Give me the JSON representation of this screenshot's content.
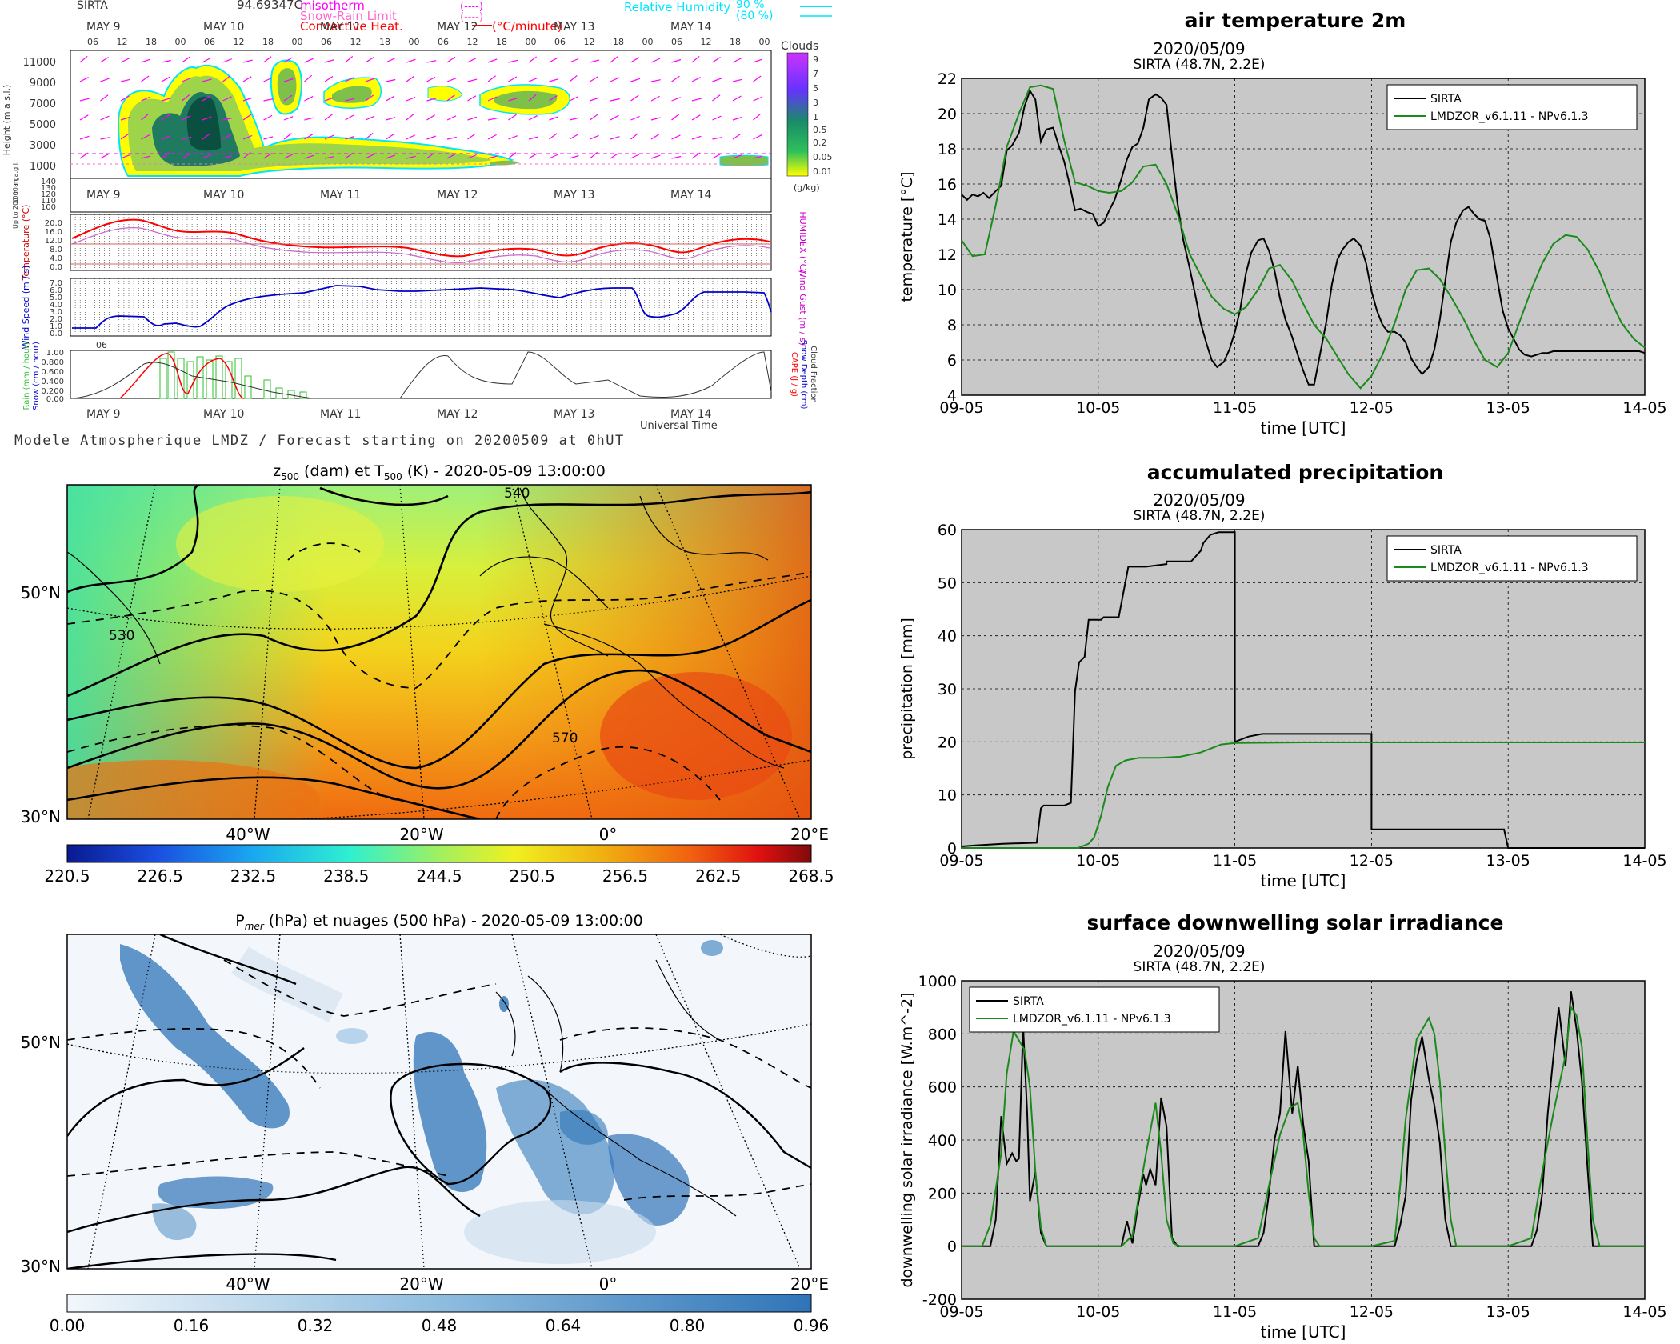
{
  "meteogram": {
    "station": "SIRTA",
    "value_header": "94.69347C",
    "legend_left": [
      {
        "label": "misotherm",
        "unit": "(----)",
        "color": "#ff00ff"
      },
      {
        "label": "Snow-Rain Limit",
        "unit": "(----)",
        "color": "#ff66cc"
      },
      {
        "label": "Convective Heat.",
        "unit": "(°C/minute)",
        "color": "#ff0000"
      }
    ],
    "legend_right": [
      {
        "label": "Relative Humidity",
        "value": "90 %",
        "color": "#00e5ff"
      },
      {
        "label": "",
        "value": "(80 %)",
        "color": "#00e5ff"
      }
    ],
    "day_labels": [
      "MAY  9",
      "MAY 10",
      "MAY 11",
      "MAY 12",
      "MAY 13",
      "MAY 14"
    ],
    "hour_labels": [
      "06",
      "12",
      "18",
      "00"
    ],
    "height_axis": {
      "label": "Height (m a.s.l.)",
      "ticks": [
        "11000",
        "9000",
        "7000",
        "5000",
        "3000",
        "1000"
      ],
      "sub_label": "1000 m a.g.l."
    },
    "low_axis": {
      "label": "Up to 200 m a.g.l.",
      "ticks": [
        "140",
        "130",
        "120",
        "110",
        "100"
      ]
    },
    "clouds_scale": {
      "title": "Clouds",
      "unit": "(g/kg)",
      "ticks": [
        "9",
        "7",
        "5",
        "3",
        "1",
        "0.5",
        "0.2",
        "0.05",
        "0.01"
      ]
    },
    "temp_panel": {
      "label": "Temperature (°C)",
      "right_label": "HUMIDEX (°C)",
      "ticks": [
        "20.0",
        "16.0",
        "12.0",
        "8.0",
        "4.0",
        "0.0"
      ]
    },
    "wind_panel": {
      "label": "Wind Speed (m / s)",
      "right_label": "Wind Gust (m / s)",
      "ticks": [
        "7.0",
        "6.0",
        "5.0",
        "4.0",
        "3.0",
        "2.0",
        "1.0",
        "0.0"
      ]
    },
    "rain_panel": {
      "label": "Rain (mm / hour)",
      "label2": "Snow (cm / hour)",
      "right_label": "CAPE (J / g)",
      "right_label2": "Snow Depth (cm)",
      "right_label3": "Cloud Fraction",
      "ticks": [
        "1.00",
        "0.800",
        "0.600",
        "0.400",
        "0.200",
        "0.00"
      ]
    },
    "x_title": "Universal Time",
    "footer": "Modele Atmospherique LMDZ / Forecast starting on 20200509 at 0hUT"
  },
  "map1": {
    "title_pre": "z",
    "title_sub1": "500",
    "title_mid": " (dam) et T",
    "title_sub2": "500",
    "title_post": " (K) - 2020-05-09 13:00:00",
    "lat_labels": [
      "50°N",
      "30°N"
    ],
    "lon_labels": [
      "40°W",
      "20°W",
      "0°",
      "20°E"
    ],
    "contour_labels": [
      "540",
      "530",
      "570"
    ],
    "colorbar_ticks": [
      "220.5",
      "226.5",
      "232.5",
      "238.5",
      "244.5",
      "250.5",
      "256.5",
      "262.5",
      "268.5"
    ]
  },
  "map2": {
    "title_pre": "P",
    "title_sub": "mer",
    "title_post": " (hPa) et nuages (500 hPa) - 2020-05-09 13:00:00",
    "lat_labels": [
      "50°N",
      "30°N"
    ],
    "lon_labels": [
      "40°W",
      "20°W",
      "0°",
      "20°E"
    ],
    "colorbar_ticks": [
      "0.00",
      "0.16",
      "0.32",
      "0.48",
      "0.64",
      "0.80",
      "0.96"
    ]
  },
  "colors": {
    "sirta": "#000000",
    "model": "#1a8a1a",
    "plot_bg": "#c8c8c8",
    "temp_line": "#ff0000",
    "wind_line": "#0000cc"
  },
  "chart_data": [
    {
      "type": "line",
      "title": "air temperature 2m",
      "date_line": "2020/05/09",
      "station_line": "SIRTA (48.7N, 2.2E)",
      "xlabel": "time [UTC]",
      "ylabel": "temperature [°C]",
      "x_ticks": [
        "09-05",
        "10-05",
        "11-05",
        "12-05",
        "13-05",
        "14-05"
      ],
      "y_ticks": [
        "4",
        "6",
        "8",
        "10",
        "12",
        "14",
        "16",
        "18",
        "20",
        "22"
      ],
      "xlim": [
        0,
        5
      ],
      "ylim": [
        4,
        22
      ],
      "grid": true,
      "legend_position": "top-right",
      "series": [
        {
          "name": "SIRTA",
          "x": [
            0,
            0.04,
            0.08,
            0.12,
            0.16,
            0.2,
            0.25,
            0.29,
            0.33,
            0.37,
            0.42,
            0.46,
            0.5,
            0.54,
            0.58,
            0.62,
            0.67,
            0.71,
            0.75,
            0.79,
            0.83,
            0.87,
            0.92,
            0.96,
            1,
            1.04,
            1.08,
            1.12,
            1.17,
            1.21,
            1.25,
            1.29,
            1.33,
            1.37,
            1.42,
            1.46,
            1.5,
            1.54,
            1.58,
            1.62,
            1.67,
            1.71,
            1.75,
            1.79,
            1.83,
            1.87,
            1.92,
            1.96,
            2,
            2.04,
            2.08,
            2.12,
            2.17,
            2.21,
            2.25,
            2.29,
            2.33,
            2.37,
            2.42,
            2.46,
            2.5,
            2.54,
            2.58,
            2.62,
            2.67,
            2.71,
            2.75,
            2.79,
            2.83,
            2.87,
            2.92,
            2.96,
            3,
            3.04,
            3.08,
            3.12,
            3.17,
            3.21,
            3.25,
            3.29,
            3.33,
            3.37,
            3.42,
            3.46,
            3.5,
            3.54,
            3.58,
            3.62,
            3.67,
            3.71,
            3.75,
            3.79,
            3.83,
            3.87,
            3.92,
            3.96,
            4,
            4.04,
            4.08,
            4.12,
            4.17,
            4.21,
            4.25,
            4.29,
            4.33,
            4.37,
            4.42,
            4.46,
            4.5,
            4.54,
            4.58,
            4.62,
            4.67,
            4.71,
            4.75,
            4.79,
            4.83,
            4.87,
            4.92,
            4.96,
            5
          ],
          "y": [
            15.4,
            15.1,
            15.4,
            15.3,
            15.5,
            15.2,
            15.6,
            15.9,
            17.9,
            18.2,
            18.9,
            20.4,
            21.3,
            20.8,
            18.4,
            19.1,
            19.2,
            18.2,
            17.3,
            16.0,
            14.5,
            14.6,
            14.4,
            14.3,
            13.6,
            13.8,
            14.5,
            15.1,
            16.3,
            17.4,
            18.1,
            18.3,
            19.2,
            20.8,
            21.1,
            20.9,
            20.5,
            17.6,
            14.9,
            12.9,
            11.2,
            9.7,
            8.1,
            7.0,
            6.0,
            5.6,
            5.9,
            6.6,
            7.6,
            8.9,
            10.9,
            12.1,
            12.8,
            12.9,
            12.2,
            11.1,
            9.5,
            8.3,
            7.3,
            6.3,
            5.4,
            4.6,
            4.6,
            6.2,
            8.2,
            10.3,
            11.7,
            12.3,
            12.7,
            12.9,
            12.5,
            11.5,
            9.9,
            8.8,
            8.0,
            7.6,
            7.6,
            7.4,
            7.0,
            6.1,
            5.6,
            5.2,
            5.6,
            6.6,
            8.3,
            10.5,
            12.7,
            13.8,
            14.5,
            14.7,
            14.3,
            14.0,
            13.9,
            12.9,
            10.6,
            8.8,
            7.8,
            7.2,
            6.6,
            6.3,
            6.2,
            6.3,
            6.4,
            6.4,
            6.5,
            6.5,
            6.5,
            6.5,
            6.5,
            6.5,
            6.5,
            6.5,
            6.5,
            6.5,
            6.5,
            6.5,
            6.5,
            6.5,
            6.5,
            6.5,
            6.4
          ]
        },
        {
          "name": "LMDZOR_v6.1.11 - NPv6.1.3",
          "x": [
            0,
            0.08,
            0.17,
            0.25,
            0.33,
            0.42,
            0.5,
            0.58,
            0.67,
            0.75,
            0.83,
            0.92,
            1,
            1.08,
            1.17,
            1.25,
            1.33,
            1.42,
            1.5,
            1.58,
            1.67,
            1.75,
            1.83,
            1.92,
            2,
            2.08,
            2.17,
            2.25,
            2.33,
            2.42,
            2.5,
            2.58,
            2.67,
            2.75,
            2.83,
            2.92,
            3,
            3.08,
            3.17,
            3.25,
            3.33,
            3.42,
            3.5,
            3.58,
            3.67,
            3.75,
            3.83,
            3.92,
            4,
            4.08,
            4.17,
            4.25,
            4.33,
            4.42,
            4.5,
            4.58,
            4.67,
            4.75,
            4.83,
            4.92,
            5
          ],
          "y": [
            12.8,
            11.9,
            12.0,
            14.8,
            18.1,
            20.0,
            21.5,
            21.6,
            21.4,
            18.5,
            16.1,
            15.9,
            15.6,
            15.5,
            15.6,
            16.1,
            17.0,
            17.1,
            16.0,
            14.3,
            12.0,
            10.8,
            9.6,
            8.9,
            8.6,
            9.0,
            10.0,
            11.2,
            11.4,
            10.5,
            9.2,
            8.0,
            7.2,
            6.2,
            5.2,
            4.4,
            5.1,
            6.3,
            8.1,
            10.0,
            11.1,
            11.2,
            10.6,
            9.6,
            8.4,
            7.1,
            6.0,
            5.6,
            6.4,
            8.1,
            10.0,
            11.5,
            12.6,
            13.1,
            13.0,
            12.3,
            11.0,
            9.4,
            8.1,
            7.2,
            6.7
          ]
        }
      ]
    },
    {
      "type": "line",
      "title": "accumulated precipitation",
      "date_line": "2020/05/09",
      "station_line": "SIRTA (48.7N, 2.2E)",
      "xlabel": "time [UTC]",
      "ylabel": "precipitation [mm]",
      "x_ticks": [
        "09-05",
        "10-05",
        "11-05",
        "12-05",
        "13-05",
        "14-05"
      ],
      "y_ticks": [
        "0",
        "10",
        "20",
        "30",
        "40",
        "50",
        "60"
      ],
      "xlim": [
        0,
        5
      ],
      "ylim": [
        0,
        60
      ],
      "grid": true,
      "legend_position": "top-right",
      "series": [
        {
          "name": "SIRTA",
          "x": [
            0,
            0.1,
            0.3,
            0.55,
            0.58,
            0.6,
            0.75,
            0.8,
            0.83,
            0.86,
            0.9,
            0.93,
            0.96,
            1.02,
            1.04,
            1.08,
            1.15,
            1.22,
            1.23,
            1.35,
            1.5,
            1.5,
            1.68,
            1.75,
            1.77,
            1.82,
            1.88,
            2.0,
            2.0,
            2.1,
            2.2,
            2.35,
            2.55,
            3.0,
            3.0,
            3.1,
            3.97,
            3.97,
            4.0,
            5
          ],
          "y": [
            0.3,
            0.5,
            0.8,
            1.0,
            7.5,
            8.0,
            8.0,
            8.5,
            29.5,
            35.0,
            36.0,
            43.0,
            43.0,
            43.0,
            43.5,
            43.5,
            43.5,
            53.0,
            53.0,
            53.0,
            53.5,
            54.0,
            54.0,
            56.0,
            57.5,
            59.0,
            59.5,
            59.5,
            20.0,
            21.0,
            21.5,
            21.5,
            21.5,
            21.5,
            3.5,
            3.5,
            3.5,
            3.5,
            0.0,
            0.0
          ]
        },
        {
          "name": "LMDZOR_v6.1.11 - NPv6.1.3",
          "x": [
            0,
            0.75,
            0.85,
            0.93,
            0.97,
            1.02,
            1.07,
            1.13,
            1.2,
            1.3,
            1.45,
            1.6,
            1.75,
            1.9,
            2.0,
            2.5,
            3.0,
            4.0,
            5
          ],
          "y": [
            0,
            0,
            0,
            0.8,
            2.0,
            6.0,
            11.5,
            15.5,
            16.5,
            17.0,
            17.0,
            17.2,
            18.0,
            19.5,
            19.8,
            19.9,
            19.9,
            19.9,
            19.9
          ]
        }
      ]
    },
    {
      "type": "line",
      "title": "surface downwelling solar irradiance",
      "date_line": "2020/05/09",
      "station_line": "SIRTA (48.7N, 2.2E)",
      "xlabel": "time [UTC]",
      "ylabel": "downwelling solar irradiance [W.m^-2]",
      "x_ticks": [
        "09-05",
        "10-05",
        "11-05",
        "12-05",
        "13-05",
        "14-05"
      ],
      "y_ticks": [
        "-200",
        "0",
        "200",
        "400",
        "600",
        "800",
        "1000"
      ],
      "xlim": [
        0,
        5
      ],
      "ylim": [
        -200,
        1000
      ],
      "grid": true,
      "legend_position": "top-left",
      "series": [
        {
          "name": "SIRTA",
          "x": [
            0,
            0.15,
            0.21,
            0.25,
            0.29,
            0.33,
            0.37,
            0.4,
            0.42,
            0.45,
            0.48,
            0.5,
            0.54,
            0.58,
            0.62,
            0.67,
            0.71,
            0.75,
            0.8,
            1.0,
            1.17,
            1.21,
            1.25,
            1.29,
            1.33,
            1.35,
            1.38,
            1.42,
            1.46,
            1.5,
            1.54,
            1.58,
            1.62,
            1.67,
            1.71,
            1.75,
            1.8,
            2.0,
            2.17,
            2.21,
            2.25,
            2.29,
            2.33,
            2.37,
            2.42,
            2.46,
            2.5,
            2.54,
            2.58,
            2.62,
            2.67,
            2.71,
            2.75,
            2.8,
            3.0,
            3.17,
            3.21,
            3.25,
            3.29,
            3.33,
            3.37,
            3.42,
            3.46,
            3.5,
            3.54,
            3.58,
            3.62,
            3.67,
            3.71,
            3.75,
            3.8,
            4.0,
            4.17,
            4.21,
            4.25,
            4.29,
            4.33,
            4.37,
            4.42,
            4.46,
            4.5,
            4.54,
            4.58,
            4.62,
            4.67,
            4.71,
            4.75,
            4.8,
            5
          ],
          "y": [
            0,
            0,
            0,
            100,
            490,
            310,
            350,
            320,
            330,
            830,
            500,
            170,
            280,
            50,
            0,
            0,
            0,
            0,
            0,
            0,
            0,
            95,
            10,
            150,
            270,
            230,
            290,
            230,
            560,
            450,
            30,
            0,
            0,
            0,
            0,
            0,
            0,
            0,
            0,
            50,
            200,
            400,
            500,
            810,
            500,
            680,
            460,
            320,
            0,
            0,
            0,
            0,
            0,
            0,
            0,
            0,
            80,
            190,
            550,
            700,
            790,
            630,
            530,
            390,
            100,
            0,
            0,
            0,
            0,
            0,
            0,
            0,
            0,
            60,
            200,
            500,
            710,
            900,
            680,
            960,
            820,
            620,
            300,
            0,
            0,
            0,
            0,
            0,
            0
          ]
        },
        {
          "name": "LMDZOR_v6.1.11 - NPv6.1.3",
          "x": [
            0,
            0.15,
            0.21,
            0.29,
            0.33,
            0.38,
            0.46,
            0.5,
            0.54,
            0.58,
            0.62,
            0.67,
            0.75,
            1.17,
            1.25,
            1.3,
            1.35,
            1.42,
            1.46,
            1.5,
            1.55,
            1.6,
            1.67,
            2.0,
            2.17,
            2.25,
            2.33,
            2.4,
            2.46,
            2.5,
            2.54,
            2.58,
            2.62,
            2.67,
            3.0,
            3.17,
            3.21,
            3.25,
            3.33,
            3.42,
            3.46,
            3.5,
            3.54,
            3.58,
            3.62,
            3.67,
            4.0,
            4.17,
            4.25,
            4.33,
            4.42,
            4.46,
            4.5,
            4.54,
            4.58,
            4.62,
            4.67,
            5
          ],
          "y": [
            0,
            0,
            80,
            350,
            650,
            810,
            740,
            600,
            280,
            70,
            0,
            0,
            0,
            0,
            40,
            200,
            350,
            540,
            350,
            100,
            10,
            0,
            0,
            0,
            30,
            230,
            420,
            520,
            540,
            420,
            200,
            30,
            0,
            0,
            0,
            20,
            230,
            480,
            780,
            860,
            800,
            620,
            350,
            100,
            0,
            0,
            0,
            30,
            280,
            500,
            720,
            900,
            870,
            750,
            400,
            100,
            0,
            0
          ]
        }
      ]
    }
  ]
}
